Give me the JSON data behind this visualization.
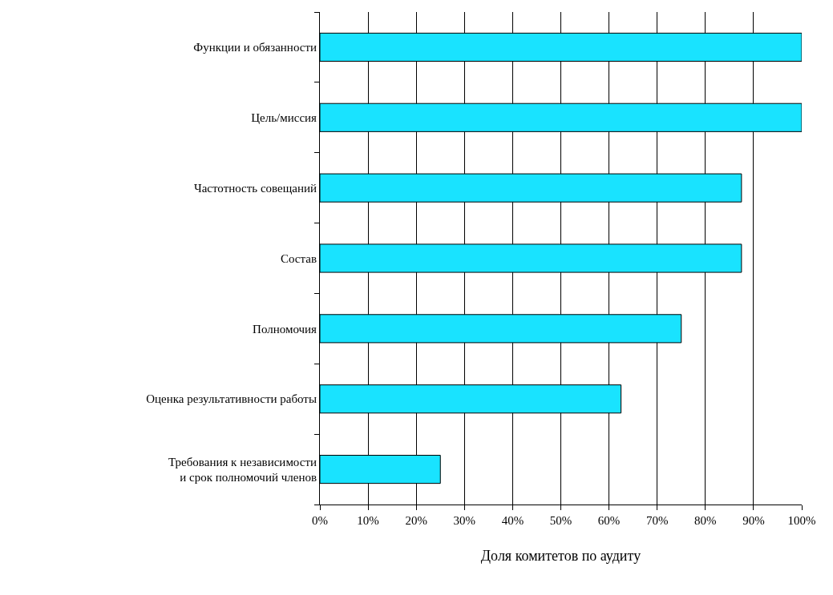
{
  "chart_data": {
    "type": "bar",
    "orientation": "horizontal",
    "xlabel": "Доля комитетов по аудиту",
    "categories": [
      "Функции и обязанности",
      "Цель/миссия",
      "Частотность совещаний",
      "Состав",
      "Полномочия",
      "Оценка результативности работы",
      "Требования к независимости\nи срок полномочий членов"
    ],
    "values": [
      100,
      100,
      87.5,
      87.5,
      75,
      62.5,
      25
    ],
    "color": "#19e3ff",
    "xlim": [
      0,
      100
    ],
    "xticks": [
      {
        "value": 0,
        "label": "0%"
      },
      {
        "value": 10,
        "label": "10%"
      },
      {
        "value": 20,
        "label": "20%"
      },
      {
        "value": 30,
        "label": "30%"
      },
      {
        "value": 40,
        "label": "40%"
      },
      {
        "value": 50,
        "label": "50%"
      },
      {
        "value": 60,
        "label": "60%"
      },
      {
        "value": 70,
        "label": "70%"
      },
      {
        "value": 80,
        "label": "80%"
      },
      {
        "value": 90,
        "label": "90%"
      },
      {
        "value": 100,
        "label": "100%"
      }
    ],
    "grid": "x",
    "legend": false
  }
}
